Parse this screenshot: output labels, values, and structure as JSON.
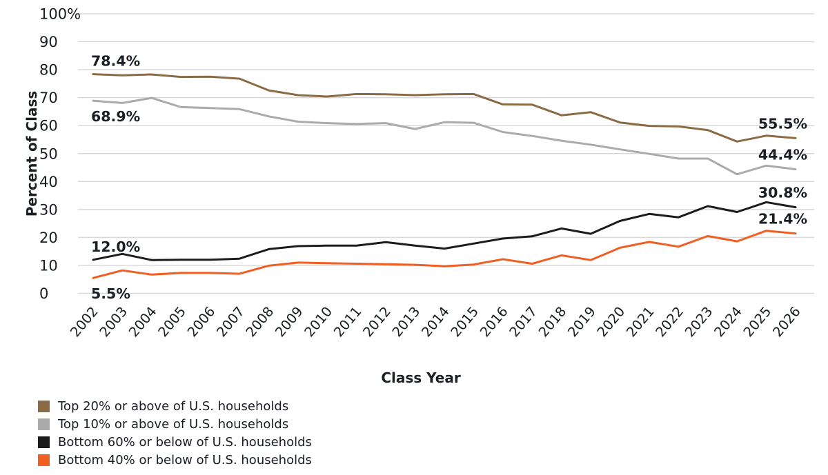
{
  "chart_data": {
    "type": "line",
    "title": "",
    "xlabel": "Class Year",
    "ylabel": "Percent of Class",
    "ylim": [
      0,
      100
    ],
    "grid": true,
    "legend_position": "bottom-left",
    "colors": {
      "grid": "#d8d8d8",
      "text": "#1a1e25"
    },
    "y_ticks": [
      "100%",
      "90",
      "80",
      "70",
      "60",
      "50",
      "40",
      "30",
      "20",
      "10",
      "0"
    ],
    "x": [
      2002,
      2003,
      2004,
      2005,
      2006,
      2007,
      2008,
      2009,
      2010,
      2011,
      2012,
      2013,
      2014,
      2015,
      2016,
      2017,
      2018,
      2019,
      2020,
      2021,
      2022,
      2023,
      2024,
      2025,
      2026
    ],
    "series": [
      {
        "name": "Top 20% or above of U.S. households",
        "color": "#8a6b45",
        "values": [
          78.4,
          78.0,
          78.3,
          77.4,
          77.5,
          76.8,
          72.6,
          70.9,
          70.4,
          71.3,
          71.2,
          70.9,
          71.2,
          71.3,
          67.6,
          67.5,
          63.7,
          64.8,
          61.1,
          59.9,
          59.7,
          58.4,
          54.3,
          56.4,
          55.5
        ]
      },
      {
        "name": "Top 10% or above of U.S. households",
        "color": "#ababab",
        "values": [
          68.9,
          68.1,
          69.9,
          66.6,
          66.3,
          65.9,
          63.3,
          61.4,
          60.9,
          60.6,
          60.9,
          58.8,
          61.2,
          61.0,
          57.7,
          56.3,
          54.6,
          53.2,
          51.5,
          49.9,
          48.2,
          48.2,
          42.6,
          45.7,
          44.4
        ]
      },
      {
        "name": "Bottom 60% or below of U.S. households",
        "color": "#1c1c1c",
        "values": [
          12.0,
          14.1,
          11.9,
          12.0,
          12.0,
          12.4,
          15.8,
          16.9,
          17.1,
          17.1,
          18.3,
          17.1,
          16.0,
          17.8,
          19.6,
          20.4,
          23.2,
          21.3,
          25.9,
          28.4,
          27.2,
          31.2,
          29.1,
          32.6,
          30.8
        ]
      },
      {
        "name": "Bottom 40% or below of U.S. households",
        "color": "#f15e22",
        "values": [
          5.5,
          8.2,
          6.7,
          7.3,
          7.3,
          7.0,
          9.9,
          11.0,
          10.8,
          10.6,
          10.4,
          10.2,
          9.7,
          10.3,
          12.2,
          10.6,
          13.6,
          11.9,
          16.3,
          18.4,
          16.7,
          20.5,
          18.6,
          22.4,
          21.4
        ]
      }
    ],
    "point_labels": [
      {
        "text": "78.4%",
        "series": 0,
        "point": "first",
        "placement": "above"
      },
      {
        "text": "68.9%",
        "series": 1,
        "point": "first",
        "placement": "below"
      },
      {
        "text": "12.0%",
        "series": 2,
        "point": "first",
        "placement": "above"
      },
      {
        "text": "5.5%",
        "series": 3,
        "point": "first",
        "placement": "below"
      },
      {
        "text": "55.5%",
        "series": 0,
        "point": "last",
        "placement": "above"
      },
      {
        "text": "44.4%",
        "series": 1,
        "point": "last",
        "placement": "above"
      },
      {
        "text": "30.8%",
        "series": 2,
        "point": "last",
        "placement": "above"
      },
      {
        "text": "21.4%",
        "series": 3,
        "point": "last",
        "placement": "above"
      }
    ]
  }
}
